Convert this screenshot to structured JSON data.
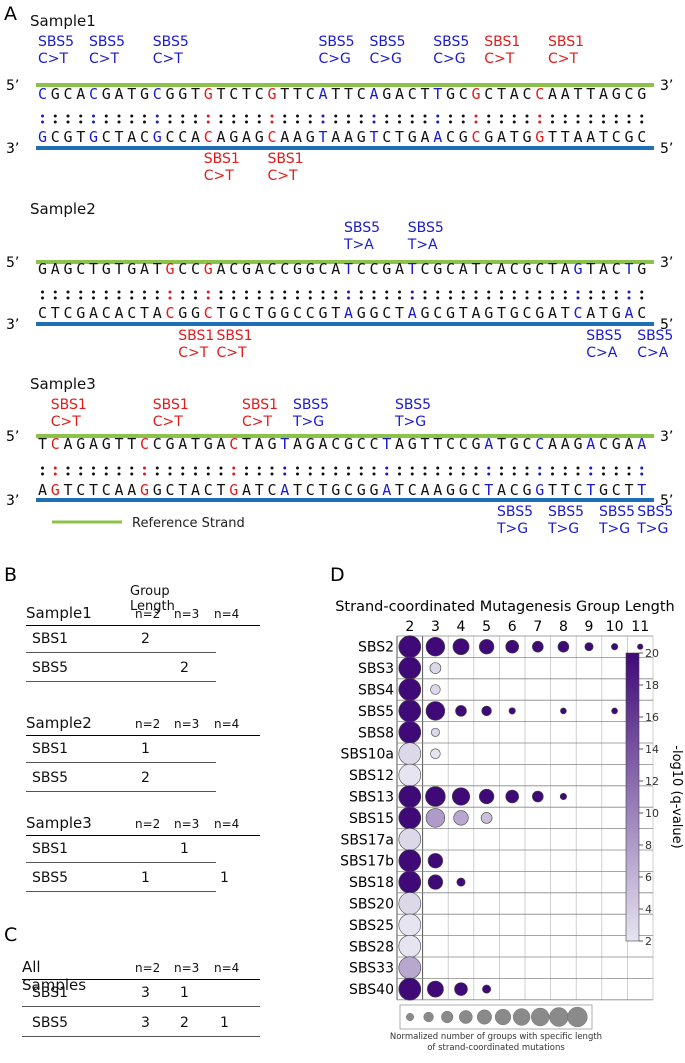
{
  "panels": {
    "a": "A",
    "b": "B",
    "c": "C",
    "d": "D"
  },
  "panel_a": {
    "prime5": "5’",
    "prime3": "3’",
    "legend_label": "Reference Strand",
    "colors": {
      "sbs1": "#e01b1b",
      "sbs5": "#1a1ad0",
      "top_strand": "#8bc34a",
      "bottom_strand": "#1f6fb5"
    },
    "samples": [
      {
        "name": "Sample1",
        "top_seq": "CGCACGATGCGGTGTCTCGTTCATTCAGACTTGCGCTACCAATTAGCG",
        "bottom_seq": "GCGTGCTACGCCACAGAGCAAGTAAGTCTGAACGCGATGGTTAATCGC",
        "top_labels": [
          {
            "sig": "SBS5",
            "chg": "C>T",
            "type": "sbs5",
            "pos": 0
          },
          {
            "sig": "SBS5",
            "chg": "C>T",
            "type": "sbs5",
            "pos": 4
          },
          {
            "sig": "SBS5",
            "chg": "C>T",
            "type": "sbs5",
            "pos": 9
          },
          {
            "sig": "SBS5",
            "chg": "C>G",
            "type": "sbs5",
            "pos": 22
          },
          {
            "sig": "SBS5",
            "chg": "C>G",
            "type": "sbs5",
            "pos": 26
          },
          {
            "sig": "SBS5",
            "chg": "C>G",
            "type": "sbs5",
            "pos": 31
          },
          {
            "sig": "SBS1",
            "chg": "C>T",
            "type": "sbs1",
            "pos": 35
          },
          {
            "sig": "SBS1",
            "chg": "C>T",
            "type": "sbs1",
            "pos": 40
          }
        ],
        "bottom_labels": [
          {
            "sig": "SBS1",
            "chg": "C>T",
            "type": "sbs1",
            "pos": 13
          },
          {
            "sig": "SBS1",
            "chg": "C>T",
            "type": "sbs1",
            "pos": 18
          }
        ],
        "top_marks": [
          [
            0,
            "sbs5"
          ],
          [
            4,
            "sbs5"
          ],
          [
            9,
            "sbs5"
          ],
          [
            13,
            "sbs1"
          ],
          [
            18,
            "sbs1"
          ],
          [
            22,
            "sbs5"
          ],
          [
            26,
            "sbs5"
          ],
          [
            31,
            "sbs5"
          ],
          [
            34,
            "sbs1"
          ],
          [
            39,
            "sbs1"
          ]
        ],
        "bottom_marks": [
          [
            0,
            "sbs5"
          ],
          [
            4,
            "sbs5"
          ],
          [
            9,
            "sbs5"
          ],
          [
            13,
            "sbs1"
          ],
          [
            18,
            "sbs1"
          ],
          [
            22,
            "sbs5"
          ],
          [
            26,
            "sbs5"
          ],
          [
            31,
            "sbs5"
          ],
          [
            34,
            "sbs1"
          ],
          [
            39,
            "sbs1"
          ]
        ]
      },
      {
        "name": "Sample2",
        "top_seq": "GAGCTGTGATGCCGACGACCGGCATCCGATCGCATCACGCTAGTACTG",
        "bottom_seq": "CTCGACACTACGGCTGCTGGCCGTAGGCTAGCGTAGTGCGATCATGAC",
        "top_labels": [
          {
            "sig": "SBS5",
            "chg": "T>A",
            "type": "sbs5",
            "pos": 24
          },
          {
            "sig": "SBS5",
            "chg": "T>A",
            "type": "sbs5",
            "pos": 29
          }
        ],
        "bottom_labels": [
          {
            "sig": "SBS1",
            "chg": "C>T",
            "type": "sbs1",
            "pos": 11
          },
          {
            "sig": "SBS1",
            "chg": "C>T",
            "type": "sbs1",
            "pos": 14
          },
          {
            "sig": "SBS5",
            "chg": "C>A",
            "type": "sbs5",
            "pos": 43
          },
          {
            "sig": "SBS5",
            "chg": "C>A",
            "type": "sbs5",
            "pos": 47
          }
        ],
        "top_marks": [
          [
            10,
            "sbs1"
          ],
          [
            13,
            "sbs1"
          ],
          [
            24,
            "sbs5"
          ],
          [
            29,
            "sbs5"
          ],
          [
            42,
            "sbs5"
          ],
          [
            46,
            "sbs5"
          ]
        ],
        "bottom_marks": [
          [
            10,
            "sbs1"
          ],
          [
            13,
            "sbs1"
          ],
          [
            24,
            "sbs5"
          ],
          [
            29,
            "sbs5"
          ],
          [
            42,
            "sbs5"
          ],
          [
            46,
            "sbs5"
          ]
        ]
      },
      {
        "name": "Sample3",
        "top_seq": "TCAGAGTTCCGATGACTAGTAGACGCCTAGTTCCGATGCCAAGACGAA",
        "bottom_seq": "AGTCTCAAGGCTACTGATCATCTGCGGATCAAGGCTACGGTTCTGCTT",
        "top_labels": [
          {
            "sig": "SBS1",
            "chg": "C>T",
            "type": "sbs1",
            "pos": 1
          },
          {
            "sig": "SBS1",
            "chg": "C>T",
            "type": "sbs1",
            "pos": 9
          },
          {
            "sig": "SBS1",
            "chg": "C>T",
            "type": "sbs1",
            "pos": 16
          },
          {
            "sig": "SBS5",
            "chg": "T>G",
            "type": "sbs5",
            "pos": 20
          },
          {
            "sig": "SBS5",
            "chg": "T>G",
            "type": "sbs5",
            "pos": 28
          }
        ],
        "bottom_labels": [
          {
            "sig": "SBS5",
            "chg": "T>G",
            "type": "sbs5",
            "pos": 36
          },
          {
            "sig": "SBS5",
            "chg": "T>G",
            "type": "sbs5",
            "pos": 40
          },
          {
            "sig": "SBS5",
            "chg": "T>G",
            "type": "sbs5",
            "pos": 44
          },
          {
            "sig": "SBS5",
            "chg": "T>G",
            "type": "sbs5",
            "pos": 47
          }
        ],
        "top_marks": [
          [
            1,
            "sbs1"
          ],
          [
            8,
            "sbs1"
          ],
          [
            15,
            "sbs1"
          ],
          [
            19,
            "sbs5"
          ],
          [
            27,
            "sbs5"
          ],
          [
            35,
            "sbs5"
          ],
          [
            39,
            "sbs5"
          ],
          [
            43,
            "sbs5"
          ],
          [
            47,
            "sbs5"
          ]
        ],
        "bottom_marks": [
          [
            1,
            "sbs1"
          ],
          [
            8,
            "sbs1"
          ],
          [
            15,
            "sbs1"
          ],
          [
            19,
            "sbs5"
          ],
          [
            27,
            "sbs5"
          ],
          [
            35,
            "sbs5"
          ],
          [
            39,
            "sbs5"
          ],
          [
            43,
            "sbs5"
          ],
          [
            47,
            "sbs5"
          ]
        ]
      }
    ]
  },
  "panel_b": {
    "group_length_label": "Group Length",
    "headers": [
      "n=2",
      "n=3",
      "n=4"
    ],
    "tables": [
      {
        "sample": "Sample1",
        "rows": [
          {
            "name": "SBS1",
            "values": [
              "2",
              "",
              ""
            ]
          },
          {
            "name": "SBS5",
            "values": [
              "",
              "2",
              ""
            ]
          }
        ]
      },
      {
        "sample": "Sample2",
        "rows": [
          {
            "name": "SBS1",
            "values": [
              "1",
              "",
              ""
            ]
          },
          {
            "name": "SBS5",
            "values": [
              "2",
              "",
              ""
            ]
          }
        ]
      },
      {
        "sample": "Sample3",
        "rows": [
          {
            "name": "SBS1",
            "values": [
              "",
              "1",
              ""
            ]
          },
          {
            "name": "SBS5",
            "values": [
              "1",
              "",
              "1"
            ]
          }
        ]
      }
    ]
  },
  "panel_c": {
    "title": "All Samples",
    "headers": [
      "n=2",
      "n=3",
      "n=4"
    ],
    "rows": [
      {
        "name": "SBS1",
        "values": [
          "3",
          "1",
          ""
        ]
      },
      {
        "name": "SBS5",
        "values": [
          "3",
          "2",
          "1"
        ]
      }
    ]
  },
  "chart_data": {
    "type": "scatter",
    "title": "Strand-coordinated Mutagenesis Group Length",
    "x_categories": [
      "2",
      "3",
      "4",
      "5",
      "6",
      "7",
      "8",
      "9",
      "10",
      "11"
    ],
    "y_categories": [
      "SBS2",
      "SBS3",
      "SBS4",
      "SBS5",
      "SBS8",
      "SBS10a",
      "SBS12",
      "SBS13",
      "SBS15",
      "SBS17a",
      "SBS17b",
      "SBS18",
      "SBS20",
      "SBS25",
      "SBS28",
      "SBS33",
      "SBS40"
    ],
    "size_scale": [
      0,
      10
    ],
    "color_label": "-log10 (q-value)",
    "color_range": [
      2,
      20
    ],
    "colorbar_ticks": [
      20,
      18,
      16,
      14,
      12,
      10,
      8,
      6,
      4,
      2
    ],
    "color_low": "#e6e4f0",
    "color_high": "#3f0a78",
    "size_legend_label": "Normalized number of groups with specific length of strand-coordinated mutations",
    "points": [
      {
        "sig": "SBS2",
        "len": "2",
        "size": 10,
        "q": 20
      },
      {
        "sig": "SBS2",
        "len": "3",
        "size": 7,
        "q": 20
      },
      {
        "sig": "SBS2",
        "len": "4",
        "size": 5,
        "q": 20
      },
      {
        "sig": "SBS2",
        "len": "5",
        "size": 4,
        "q": 20
      },
      {
        "sig": "SBS2",
        "len": "6",
        "size": 3,
        "q": 20
      },
      {
        "sig": "SBS2",
        "len": "7",
        "size": 2,
        "q": 20
      },
      {
        "sig": "SBS2",
        "len": "8",
        "size": 2,
        "q": 20
      },
      {
        "sig": "SBS2",
        "len": "9",
        "size": 1,
        "q": 20
      },
      {
        "sig": "SBS2",
        "len": "10",
        "size": 0.5,
        "q": 20
      },
      {
        "sig": "SBS2",
        "len": "11",
        "size": 0.3,
        "q": 20
      },
      {
        "sig": "SBS3",
        "len": "2",
        "size": 10,
        "q": 20
      },
      {
        "sig": "SBS3",
        "len": "3",
        "size": 2,
        "q": 3
      },
      {
        "sig": "SBS4",
        "len": "2",
        "size": 10,
        "q": 20
      },
      {
        "sig": "SBS4",
        "len": "3",
        "size": 1.5,
        "q": 3
      },
      {
        "sig": "SBS5",
        "len": "2",
        "size": 10,
        "q": 20
      },
      {
        "sig": "SBS5",
        "len": "3",
        "size": 7,
        "q": 20
      },
      {
        "sig": "SBS5",
        "len": "4",
        "size": 2,
        "q": 20
      },
      {
        "sig": "SBS5",
        "len": "5",
        "size": 1.5,
        "q": 20
      },
      {
        "sig": "SBS5",
        "len": "6",
        "size": 0.5,
        "q": 20
      },
      {
        "sig": "SBS5",
        "len": "8",
        "size": 0.4,
        "q": 20
      },
      {
        "sig": "SBS5",
        "len": "10",
        "size": 0.4,
        "q": 20
      },
      {
        "sig": "SBS8",
        "len": "2",
        "size": 10,
        "q": 20
      },
      {
        "sig": "SBS8",
        "len": "3",
        "size": 1,
        "q": 3
      },
      {
        "sig": "SBS10a",
        "len": "2",
        "size": 10,
        "q": 3
      },
      {
        "sig": "SBS10a",
        "len": "3",
        "size": 1.5,
        "q": 2
      },
      {
        "sig": "SBS12",
        "len": "2",
        "size": 10,
        "q": 2
      },
      {
        "sig": "SBS13",
        "len": "2",
        "size": 10,
        "q": 20
      },
      {
        "sig": "SBS13",
        "len": "3",
        "size": 8,
        "q": 20
      },
      {
        "sig": "SBS13",
        "len": "4",
        "size": 6,
        "q": 20
      },
      {
        "sig": "SBS13",
        "len": "5",
        "size": 4,
        "q": 20
      },
      {
        "sig": "SBS13",
        "len": "6",
        "size": 3,
        "q": 20
      },
      {
        "sig": "SBS13",
        "len": "7",
        "size": 2,
        "q": 20
      },
      {
        "sig": "SBS13",
        "len": "8",
        "size": 0.5,
        "q": 20
      },
      {
        "sig": "SBS15",
        "len": "2",
        "size": 10,
        "q": 20
      },
      {
        "sig": "SBS15",
        "len": "3",
        "size": 7,
        "q": 8
      },
      {
        "sig": "SBS15",
        "len": "4",
        "size": 4,
        "q": 7
      },
      {
        "sig": "SBS15",
        "len": "5",
        "size": 2,
        "q": 5
      },
      {
        "sig": "SBS17a",
        "len": "2",
        "size": 10,
        "q": 3
      },
      {
        "sig": "SBS17b",
        "len": "2",
        "size": 10,
        "q": 20
      },
      {
        "sig": "SBS17b",
        "len": "3",
        "size": 4,
        "q": 20
      },
      {
        "sig": "SBS18",
        "len": "2",
        "size": 10,
        "q": 20
      },
      {
        "sig": "SBS18",
        "len": "3",
        "size": 4,
        "q": 20
      },
      {
        "sig": "SBS18",
        "len": "4",
        "size": 1,
        "q": 20
      },
      {
        "sig": "SBS20",
        "len": "2",
        "size": 10,
        "q": 3
      },
      {
        "sig": "SBS25",
        "len": "2",
        "size": 10,
        "q": 2
      },
      {
        "sig": "SBS28",
        "len": "2",
        "size": 10,
        "q": 2
      },
      {
        "sig": "SBS33",
        "len": "2",
        "size": 10,
        "q": 7
      },
      {
        "sig": "SBS40",
        "len": "2",
        "size": 10,
        "q": 20
      },
      {
        "sig": "SBS40",
        "len": "3",
        "size": 5,
        "q": 20
      },
      {
        "sig": "SBS40",
        "len": "4",
        "size": 3,
        "q": 20
      },
      {
        "sig": "SBS40",
        "len": "5",
        "size": 1,
        "q": 20
      }
    ]
  }
}
